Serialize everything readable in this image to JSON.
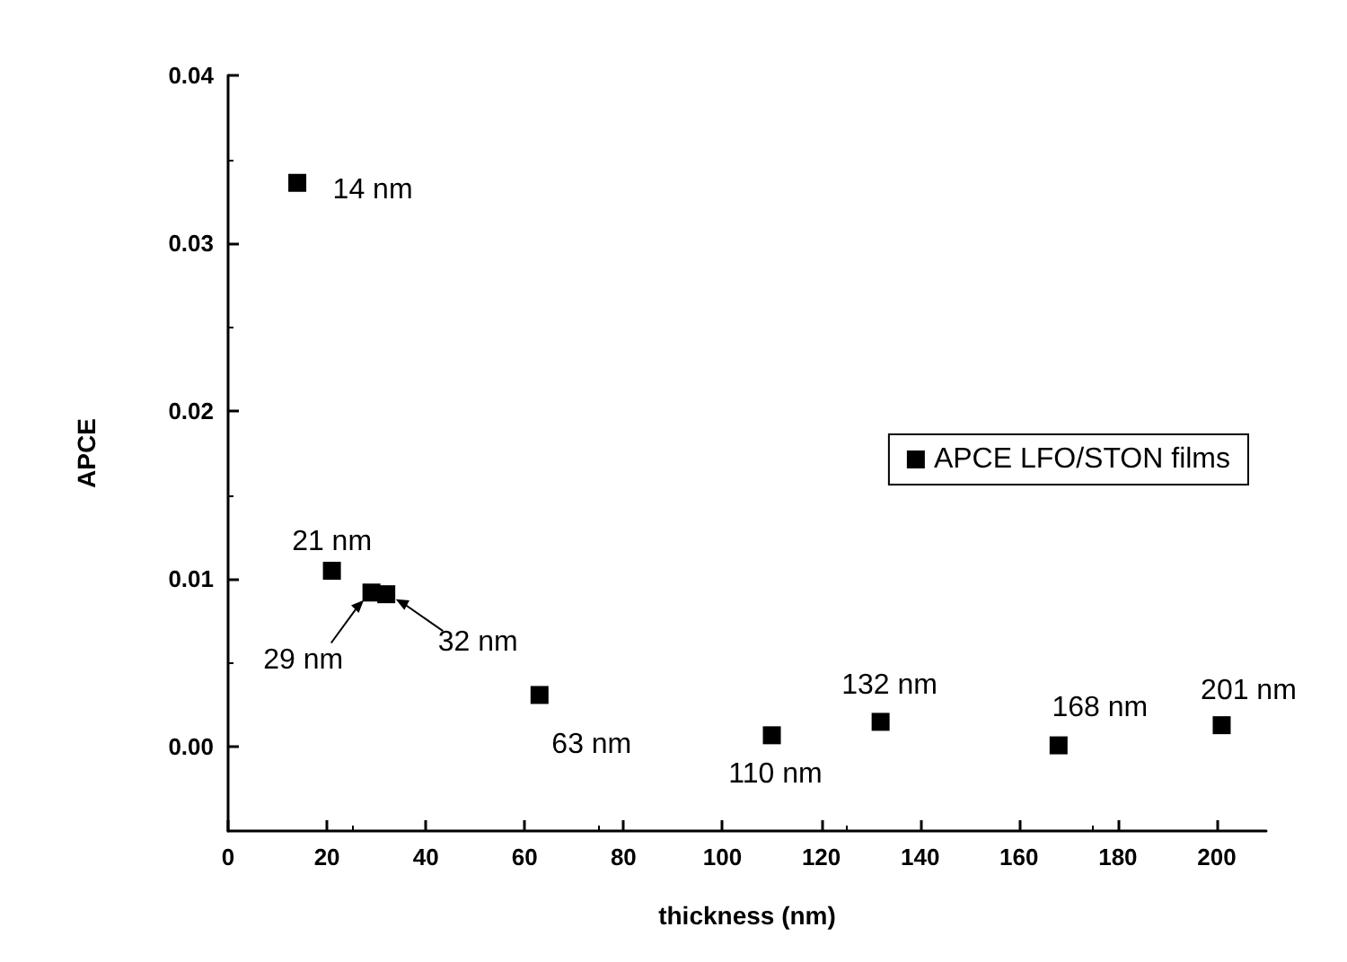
{
  "chart_data": {
    "type": "scatter",
    "xlabel": "thickness (nm)",
    "ylabel": "APCE",
    "x": [
      14,
      21,
      29,
      32,
      63,
      110,
      132,
      168,
      201
    ],
    "series": [
      {
        "name": "APCE LFO/STON films",
        "color": "#000000",
        "values": [
          0.0336,
          0.0105,
          0.0092,
          0.0091,
          0.0031,
          0.0007,
          0.0015,
          0.0001,
          0.0013
        ]
      }
    ],
    "xlim": [
      0,
      210
    ],
    "xticks": [
      0,
      20,
      40,
      60,
      80,
      100,
      120,
      140,
      160,
      180,
      200
    ],
    "ylim": [
      -0.005,
      0.04
    ],
    "yticks": [
      {
        "value": 0,
        "label": "0.00"
      },
      0.01,
      0.02,
      0.03,
      0.04
    ],
    "annotations": [
      {
        "text": "14 nm",
        "x": 14,
        "y": 0.0336
      },
      {
        "text": "21 nm",
        "x": 21,
        "y": 0.0105
      },
      {
        "text": "29 nm",
        "x": 29,
        "y": 0.0092
      },
      {
        "text": "32 nm",
        "x": 32,
        "y": 0.0091
      },
      {
        "text": "63 nm",
        "x": 63,
        "y": 0.0031
      },
      {
        "text": "110 nm",
        "x": 110,
        "y": 0.0007
      },
      {
        "text": "132 nm",
        "x": 132,
        "y": 0.0015
      },
      {
        "text": "168 nm",
        "x": 168,
        "y": 0.0001
      },
      {
        "text": "201 nm",
        "x": 201,
        "y": 0.0013
      }
    ],
    "marker": "square",
    "grid": false,
    "legend": "right"
  }
}
